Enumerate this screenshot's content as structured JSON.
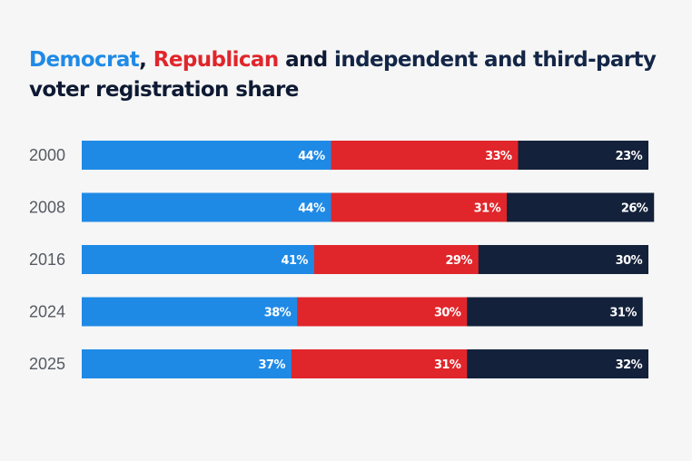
{
  "title": {
    "democrat": "Democrat",
    "comma": ",",
    "republican": "Republican",
    "and": "and",
    "independent": "independent and third-party",
    "line2": "voter registration share"
  },
  "chart_data": {
    "type": "bar",
    "orientation": "horizontal",
    "stacked": true,
    "categories": [
      "2000",
      "2008",
      "2016",
      "2024",
      "2025"
    ],
    "series": [
      {
        "name": "Democrat",
        "color": "#1f8ae6",
        "values": [
          44,
          44,
          41,
          38,
          37
        ]
      },
      {
        "name": "Republican",
        "color": "#e0262b",
        "values": [
          33,
          31,
          29,
          30,
          31
        ]
      },
      {
        "name": "independent and third-party",
        "color": "#13213b",
        "values": [
          23,
          26,
          30,
          31,
          32
        ]
      }
    ],
    "value_suffix": "%",
    "xlim": [
      0,
      100
    ],
    "grid": false,
    "legend": "title"
  }
}
